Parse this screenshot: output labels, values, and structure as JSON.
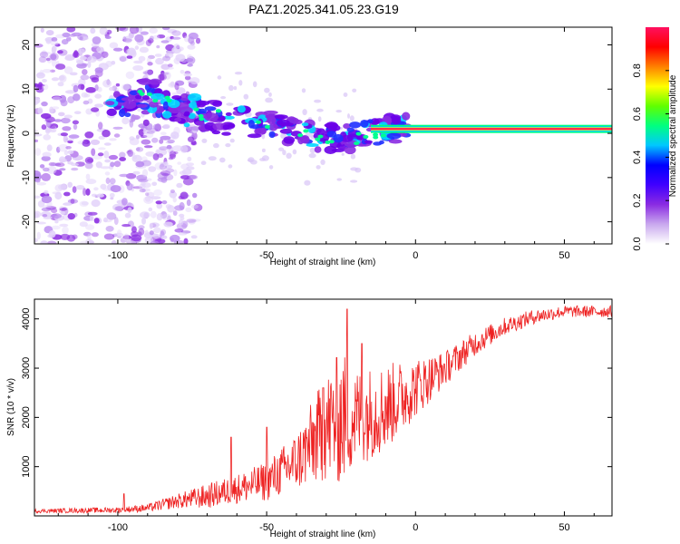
{
  "title": "PAZ1.2025.341.05.23.G19",
  "chart_data": [
    {
      "type": "heatmap",
      "name": "spectrogram",
      "xlabel": "Height of straight line (km)",
      "ylabel": "Frequency (Hz)",
      "xlim": [
        -128,
        66
      ],
      "ylim": [
        -25,
        24
      ],
      "xticks": [
        -100,
        -50,
        0,
        50
      ],
      "yticks": [
        -20,
        -10,
        0,
        10,
        20
      ],
      "colorbar": {
        "label": "Normalized spectral amplitude",
        "range": [
          0,
          1
        ],
        "ticks": [
          "0.0",
          "0.2",
          "0.4",
          "0.6",
          "0.8"
        ],
        "colors": [
          "#ffffff",
          "#c9a8ee",
          "#8a2be2",
          "#4000ff",
          "#0000ff",
          "#00c8ff",
          "#00ff80",
          "#60ff00",
          "#ffff00",
          "#ff8000",
          "#ff0000",
          "#ff1060"
        ]
      },
      "ridge": [
        {
          "x": -100,
          "y": 6
        },
        {
          "x": -90,
          "y": 9
        },
        {
          "x": -80,
          "y": 6
        },
        {
          "x": -70,
          "y": 4
        },
        {
          "x": -60,
          "y": 3
        },
        {
          "x": -50,
          "y": 2
        },
        {
          "x": -40,
          "y": 0
        },
        {
          "x": -30,
          "y": -1
        },
        {
          "x": -20,
          "y": -1
        },
        {
          "x": -15,
          "y": 0
        },
        {
          "x": -10,
          "y": 1
        },
        {
          "x": 0,
          "y": 1
        },
        {
          "x": 20,
          "y": 1
        },
        {
          "x": 66,
          "y": 1
        }
      ]
    },
    {
      "type": "line",
      "name": "snr",
      "xlabel": "Height of straight line (km)",
      "ylabel": "SNR (10 * v/v)",
      "xlim": [
        -128,
        66
      ],
      "ylim": [
        0,
        4400
      ],
      "xticks": [
        -100,
        -50,
        0,
        50
      ],
      "yticks": [
        1000,
        2000,
        3000,
        4000
      ],
      "color": "#ee2222",
      "envelope": [
        {
          "x": -128,
          "mean": 100,
          "amp": 40
        },
        {
          "x": -100,
          "mean": 120,
          "amp": 60
        },
        {
          "x": -90,
          "mean": 160,
          "amp": 80
        },
        {
          "x": -80,
          "mean": 300,
          "amp": 150
        },
        {
          "x": -70,
          "mean": 400,
          "amp": 250
        },
        {
          "x": -60,
          "mean": 550,
          "amp": 300
        },
        {
          "x": -50,
          "mean": 700,
          "amp": 400
        },
        {
          "x": -40,
          "mean": 1100,
          "amp": 600
        },
        {
          "x": -30,
          "mean": 1800,
          "amp": 1100
        },
        {
          "x": -25,
          "mean": 2000,
          "amp": 1400
        },
        {
          "x": -20,
          "mean": 2000,
          "amp": 1000
        },
        {
          "x": -10,
          "mean": 2200,
          "amp": 900
        },
        {
          "x": 0,
          "mean": 2600,
          "amp": 600
        },
        {
          "x": 10,
          "mean": 3000,
          "amp": 350
        },
        {
          "x": 20,
          "mean": 3500,
          "amp": 250
        },
        {
          "x": 30,
          "mean": 3850,
          "amp": 180
        },
        {
          "x": 40,
          "mean": 4050,
          "amp": 150
        },
        {
          "x": 50,
          "mean": 4150,
          "amp": 120
        },
        {
          "x": 66,
          "mean": 4150,
          "amp": 120
        }
      ],
      "peaks": [
        {
          "x": -98,
          "y": 450
        },
        {
          "x": -62,
          "y": 1600
        },
        {
          "x": -50,
          "y": 1800
        },
        {
          "x": -31,
          "y": 2600
        },
        {
          "x": -23,
          "y": 4200
        },
        {
          "x": -18,
          "y": 3500
        }
      ]
    }
  ]
}
